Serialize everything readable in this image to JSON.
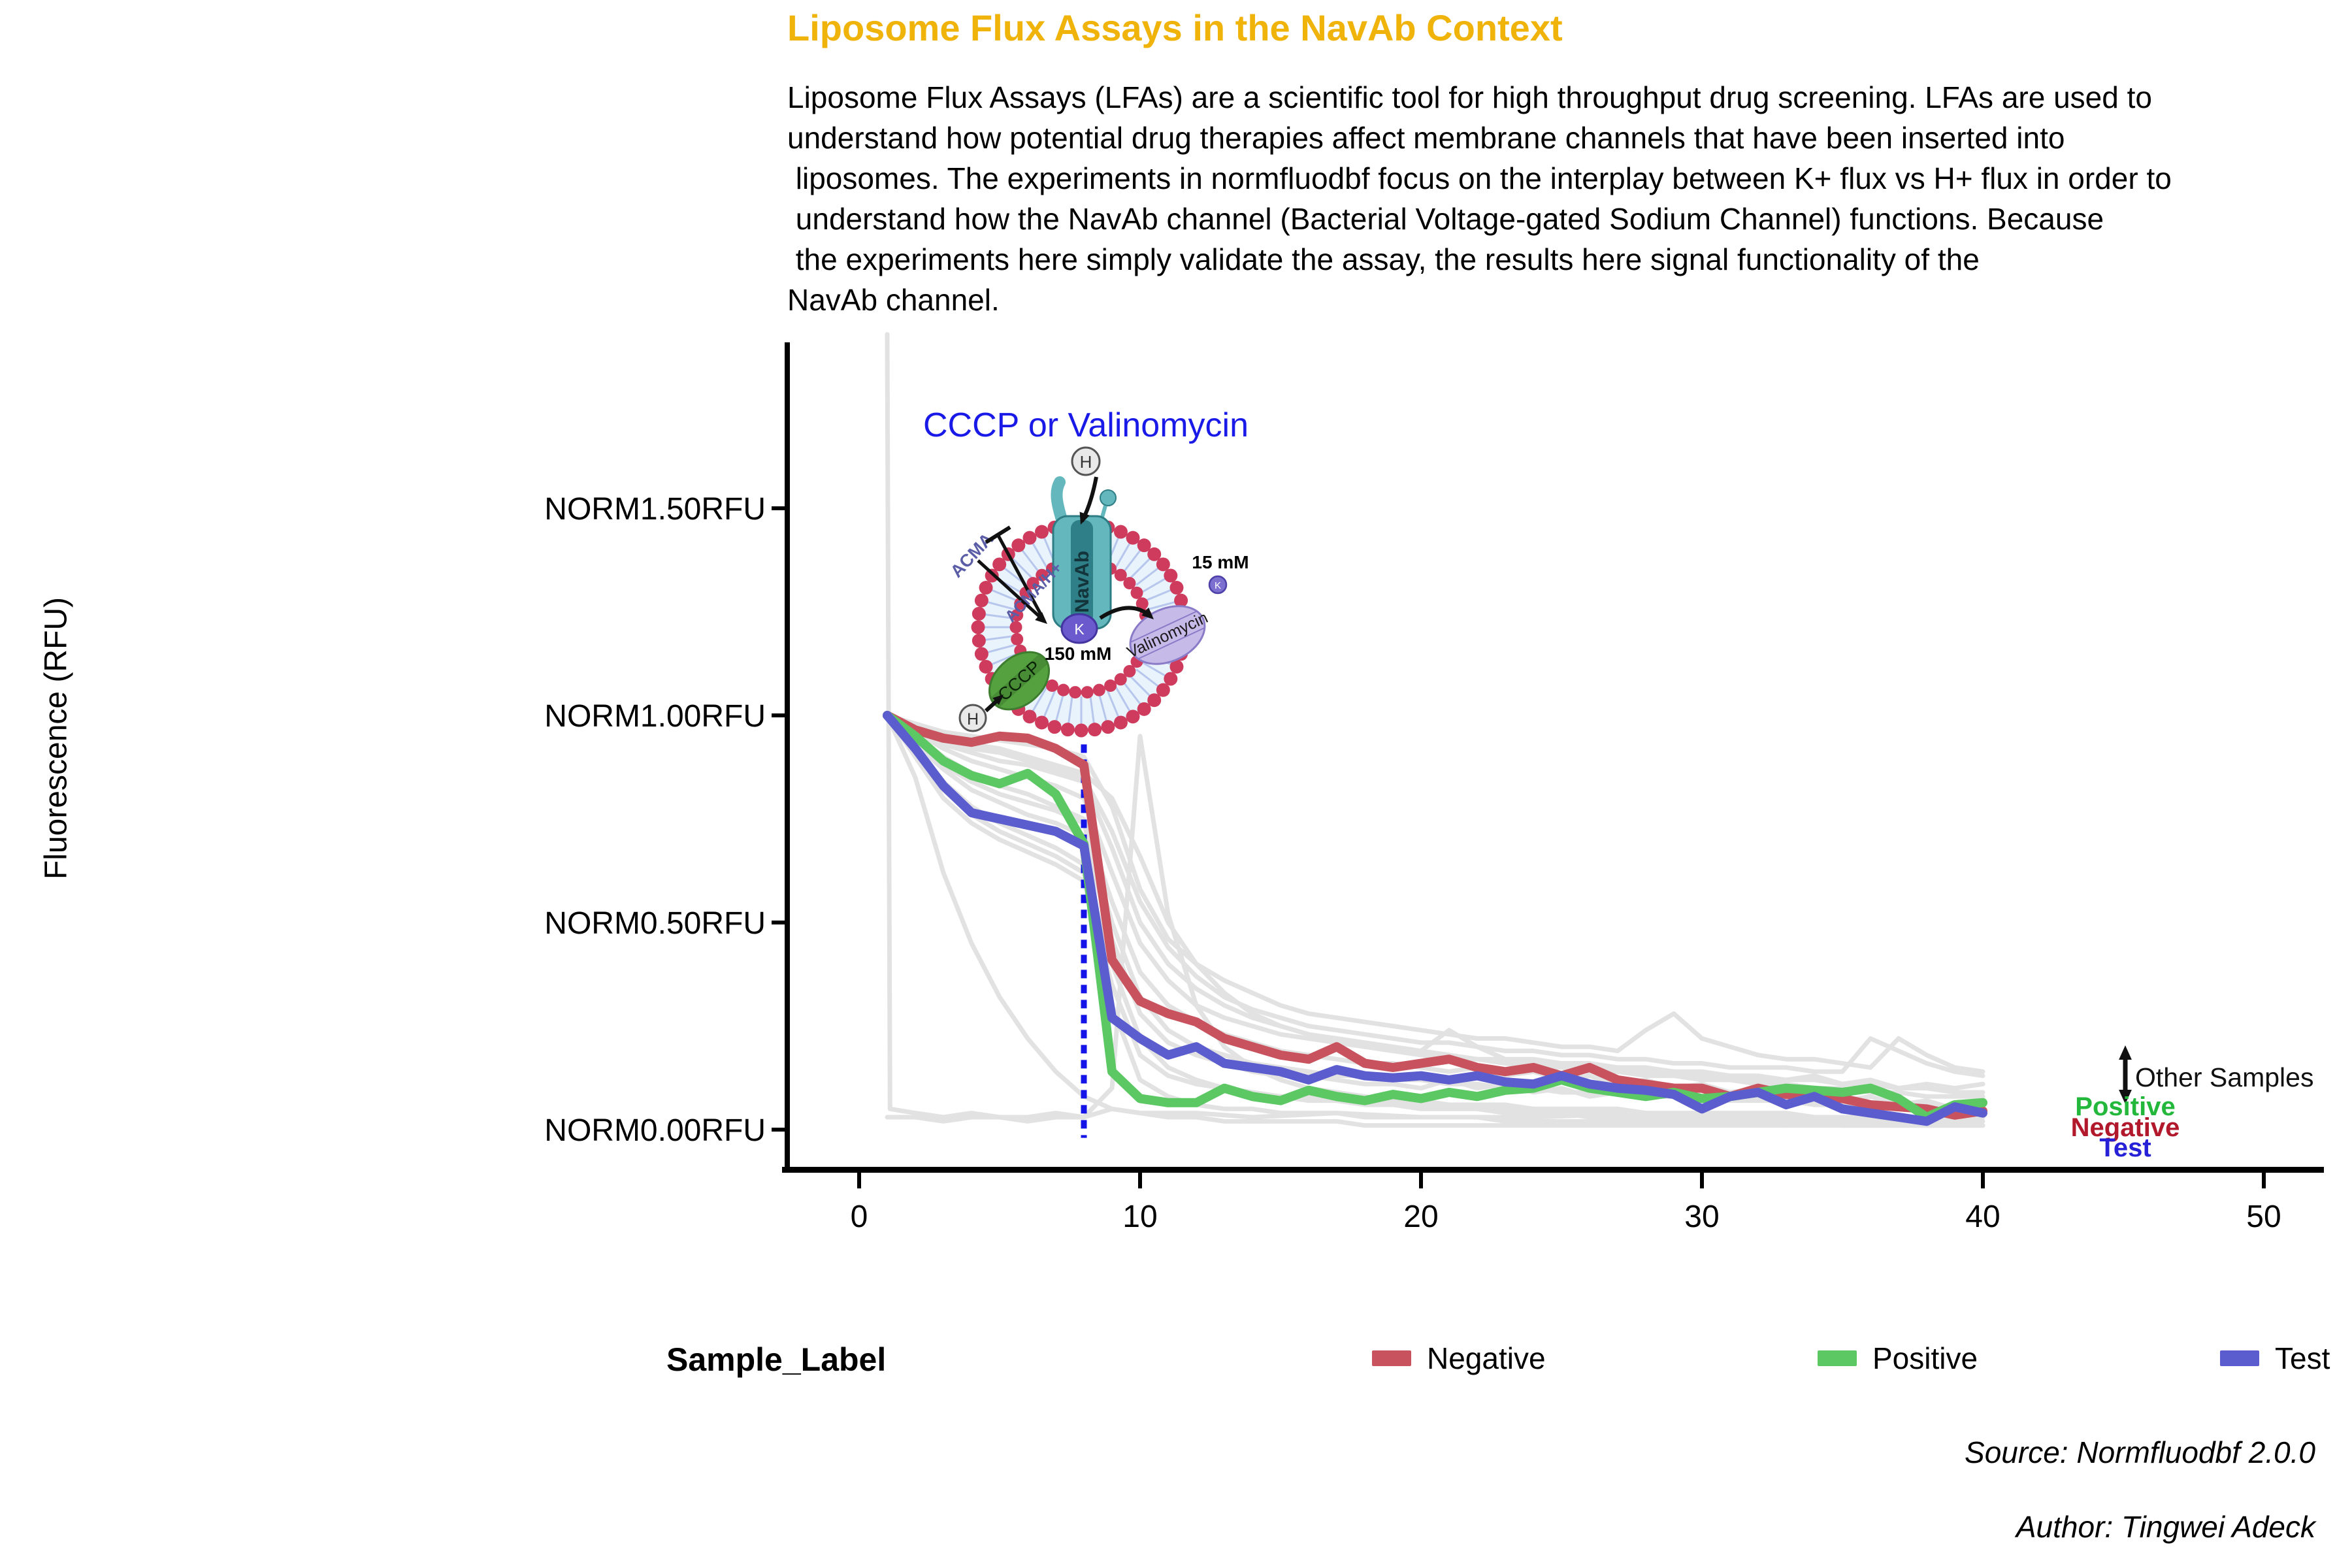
{
  "title": {
    "text": "Liposome Flux Assays in the NavAb Context",
    "color": "#efb30a"
  },
  "description": {
    "lines": [
      "Liposome Flux Assays (LFAs) are a scientific tool for high throughput drug screening. LFAs are used to",
      "understand how potential drug therapies affect membrane channels that have been inserted into",
      " liposomes. The experiments in normfluodbf focus on the interplay between K+ flux vs H+ flux in order to",
      " understand how the NavAb channel (Bacterial Voltage-gated Sodium Channel) functions. Because",
      " the experiments here simply validate the assay, the results here signal functionality of the",
      "NavAb channel."
    ]
  },
  "y_axis": {
    "label": "Fluorescence (RFU)"
  },
  "diagram": {
    "heading": "CCCP or Valinomycin",
    "heading_color": "#1a1ae8",
    "navab_label": "NavAb",
    "acma_label": "ACMA",
    "acma_h_label": "ACMA/H+",
    "cccp_label": "CCCP",
    "valinomycin_label": "Valinomycin",
    "k_ion": "K",
    "h_ion": "H",
    "inner_concentration": "150 mM",
    "outer_concentration": "15 mM"
  },
  "annotations": {
    "other_samples": {
      "label": "Other Samples",
      "color": "#111111"
    },
    "positive": {
      "label": "Positive",
      "color": "#23b83c"
    },
    "negative": {
      "label": "Negative",
      "color": "#b2182b"
    },
    "test": {
      "label": "Test",
      "color": "#2620d6"
    }
  },
  "legend": {
    "title": "Sample_Label",
    "items": [
      {
        "label": "Negative",
        "color": "#c8535e"
      },
      {
        "label": "Positive",
        "color": "#5bc863"
      },
      {
        "label": "Test",
        "color": "#5b5cce"
      }
    ]
  },
  "credits": {
    "source": "Source: Normfluodbf 2.0.0",
    "author": "Author: Tingwei Adeck"
  },
  "chart_data": {
    "type": "line",
    "title": "Liposome Flux Assays in the NavAb Context",
    "xlabel": "",
    "ylabel": "Fluorescence (RFU)",
    "xlim": [
      -1.5,
      52
    ],
    "ylim": [
      -0.1,
      1.95
    ],
    "grid": false,
    "legend_position": "bottom",
    "x_ticks": [
      0,
      10,
      20,
      30,
      40,
      50
    ],
    "y_ticks": [
      {
        "value": 0.0,
        "label": "NORM0.00RFU"
      },
      {
        "value": 0.5,
        "label": "NORM0.50RFU"
      },
      {
        "value": 1.0,
        "label": "NORM1.00RFU"
      },
      {
        "value": 1.5,
        "label": "NORM1.50RFU"
      }
    ],
    "vline": {
      "x": 8,
      "color": "#1414e8",
      "style": "dotted",
      "y_from": -0.02,
      "y_to": 0.93
    },
    "x": [
      1,
      2,
      3,
      4,
      5,
      6,
      7,
      8,
      9,
      10,
      11,
      12,
      13,
      14,
      15,
      16,
      17,
      18,
      19,
      20,
      21,
      22,
      23,
      24,
      25,
      26,
      27,
      28,
      29,
      30,
      31,
      32,
      33,
      34,
      35,
      36,
      37,
      38,
      39,
      40
    ],
    "series": [
      {
        "name": "Negative",
        "color": "#c8535e",
        "values": [
          1.0,
          0.965,
          0.945,
          0.935,
          0.95,
          0.945,
          0.92,
          0.88,
          0.41,
          0.31,
          0.28,
          0.26,
          0.22,
          0.2,
          0.18,
          0.17,
          0.2,
          0.16,
          0.15,
          0.16,
          0.17,
          0.15,
          0.14,
          0.15,
          0.13,
          0.15,
          0.12,
          0.11,
          0.1,
          0.1,
          0.08,
          0.1,
          0.085,
          0.08,
          0.075,
          0.06,
          0.055,
          0.05,
          0.035,
          0.045
        ]
      },
      {
        "name": "Positive",
        "color": "#5bc863",
        "values": [
          1.0,
          0.95,
          0.89,
          0.855,
          0.835,
          0.86,
          0.81,
          0.69,
          0.14,
          0.075,
          0.065,
          0.065,
          0.1,
          0.08,
          0.07,
          0.095,
          0.08,
          0.07,
          0.085,
          0.075,
          0.09,
          0.08,
          0.095,
          0.1,
          0.12,
          0.1,
          0.09,
          0.08,
          0.09,
          0.075,
          0.08,
          0.09,
          0.1,
          0.095,
          0.09,
          0.1,
          0.075,
          0.03,
          0.06,
          0.065
        ]
      },
      {
        "name": "Test",
        "color": "#5b5cce",
        "values": [
          1.0,
          0.92,
          0.83,
          0.765,
          0.75,
          0.735,
          0.72,
          0.685,
          0.27,
          0.22,
          0.18,
          0.2,
          0.16,
          0.15,
          0.14,
          0.12,
          0.145,
          0.13,
          0.125,
          0.13,
          0.12,
          0.13,
          0.115,
          0.11,
          0.13,
          0.11,
          0.1,
          0.095,
          0.085,
          0.05,
          0.08,
          0.09,
          0.06,
          0.08,
          0.05,
          0.04,
          0.03,
          0.02,
          0.055,
          0.04
        ]
      }
    ],
    "other_samples_color": "#e2e2e2",
    "other_samples": [
      {
        "values": [
          1,
          0.98,
          0.96,
          0.95,
          0.94,
          0.93,
          0.92,
          0.9,
          0.78,
          0.58,
          0.46,
          0.4,
          0.36,
          0.33,
          0.3,
          0.28,
          0.27,
          0.26,
          0.25,
          0.24,
          0.23,
          0.22,
          0.22,
          0.21,
          0.2,
          0.2,
          0.19,
          0.24,
          0.28,
          0.22,
          0.2,
          0.18,
          0.17,
          0.17,
          0.16,
          0.15,
          0.22,
          0.18,
          0.15,
          0.14
        ]
      },
      {
        "values": [
          1,
          0.96,
          0.92,
          0.89,
          0.87,
          0.85,
          0.83,
          0.8,
          0.62,
          0.45,
          0.36,
          0.3,
          0.27,
          0.25,
          0.23,
          0.22,
          0.21,
          0.2,
          0.19,
          0.19,
          0.18,
          0.17,
          0.17,
          0.16,
          0.16,
          0.15,
          0.15,
          0.14,
          0.14,
          0.13,
          0.13,
          0.12,
          0.12,
          0.13,
          0.11,
          0.12,
          0.1,
          0.11,
          0.1,
          0.11
        ]
      },
      {
        "values": [
          1,
          0.97,
          0.95,
          0.93,
          0.92,
          0.9,
          0.88,
          0.86,
          0.8,
          0.66,
          0.5,
          0.4,
          0.33,
          0.28,
          0.25,
          0.23,
          0.21,
          0.2,
          0.19,
          0.18,
          0.17,
          0.17,
          0.16,
          0.15,
          0.15,
          0.14,
          0.14,
          0.13,
          0.13,
          0.12,
          0.12,
          0.11,
          0.11,
          0.1,
          0.1,
          0.09,
          0.09,
          0.08,
          0.08,
          0.08
        ]
      },
      {
        "values": [
          1,
          0.94,
          0.88,
          0.84,
          0.81,
          0.79,
          0.77,
          0.74,
          0.5,
          0.32,
          0.24,
          0.2,
          0.18,
          0.16,
          0.15,
          0.14,
          0.13,
          0.13,
          0.12,
          0.12,
          0.11,
          0.11,
          0.1,
          0.1,
          0.09,
          0.09,
          0.09,
          0.08,
          0.08,
          0.08,
          0.07,
          0.07,
          0.07,
          0.06,
          0.06,
          0.06,
          0.05,
          0.05,
          0.05,
          0.05
        ]
      },
      {
        "values": [
          1,
          0.9,
          0.8,
          0.74,
          0.7,
          0.67,
          0.64,
          0.6,
          0.35,
          0.18,
          0.13,
          0.11,
          0.1,
          0.09,
          0.08,
          0.08,
          0.07,
          0.07,
          0.06,
          0.06,
          0.06,
          0.05,
          0.05,
          0.05,
          0.04,
          0.04,
          0.04,
          0.04,
          0.03,
          0.03,
          0.03,
          0.03,
          0.02,
          0.02,
          0.02,
          0.02,
          0.02,
          0.02,
          0.02,
          0.02
        ]
      },
      {
        "values": [
          1,
          0.85,
          0.62,
          0.45,
          0.32,
          0.22,
          0.14,
          0.08,
          0.05,
          0.04,
          0.03,
          0.03,
          0.02,
          0.02,
          0.02,
          0.02,
          0.02,
          0.01,
          0.01,
          0.01,
          0.01,
          0.01,
          0.01,
          0.01,
          0.01,
          0.01,
          0.01,
          0.01,
          0.01,
          0.01,
          0.01,
          0.01,
          0.01,
          0.01,
          0.01,
          0.01,
          0.01,
          0.01,
          0.01,
          0.01
        ]
      },
      {
        "values": [
          1,
          0.95,
          0.9,
          0.86,
          0.83,
          0.81,
          0.78,
          0.75,
          0.55,
          0.38,
          0.3,
          0.26,
          0.23,
          0.21,
          0.19,
          0.18,
          0.17,
          0.16,
          0.16,
          0.15,
          0.14,
          0.15,
          0.13,
          0.14,
          0.12,
          0.13,
          0.11,
          0.12,
          0.1,
          0.11,
          0.09,
          0.1,
          0.08,
          0.09,
          0.07,
          0.08,
          0.06,
          0.07,
          0.05,
          0.06
        ]
      },
      {
        "values": [
          1,
          0.92,
          0.84,
          0.78,
          0.74,
          0.71,
          0.68,
          0.64,
          0.4,
          0.22,
          0.15,
          0.12,
          0.1,
          0.09,
          0.08,
          0.07,
          0.07,
          0.06,
          0.06,
          0.05,
          0.05,
          0.05,
          0.04,
          0.04,
          0.04,
          0.03,
          0.03,
          0.03,
          0.03,
          0.02,
          0.02,
          0.02,
          0.02,
          0.02,
          0.01,
          0.01,
          0.01,
          0.01,
          0.01,
          0.01
        ]
      },
      {
        "values": [
          1,
          0.96,
          0.93,
          0.91,
          0.89,
          0.88,
          0.86,
          0.84,
          0.68,
          0.5,
          0.4,
          0.34,
          0.3,
          0.27,
          0.25,
          0.23,
          0.22,
          0.21,
          0.2,
          0.19,
          0.24,
          0.2,
          0.17,
          0.17,
          0.16,
          0.16,
          0.15,
          0.15,
          0.14,
          0.14,
          0.13,
          0.13,
          0.12,
          0.12,
          0.11,
          0.11,
          0.1,
          0.1,
          0.09,
          0.09
        ]
      },
      {
        "values": [
          0.03,
          0.03,
          0.02,
          0.03,
          0.03,
          0.02,
          0.03,
          0.03,
          0.1,
          0.95,
          0.52,
          0.3,
          0.2,
          0.15,
          0.12,
          0.1,
          0.09,
          0.08,
          0.07,
          0.07,
          0.06,
          0.06,
          0.06,
          0.05,
          0.05,
          0.05,
          0.05,
          0.04,
          0.04,
          0.04,
          0.04,
          0.04,
          0.04,
          0.03,
          0.03,
          0.03,
          0.03,
          0.03,
          0.03,
          0.03
        ]
      },
      {
        "x": [
          1,
          1.1,
          2,
          3,
          4,
          5,
          6,
          7,
          8,
          9,
          10,
          12,
          14,
          17,
          20,
          24,
          28,
          32,
          36,
          40
        ],
        "values": [
          1.92,
          0.05,
          0.04,
          0.03,
          0.04,
          0.03,
          0.03,
          0.04,
          0.03,
          0.05,
          0.04,
          0.04,
          0.03,
          0.04,
          0.03,
          0.03,
          0.04,
          0.03,
          0.03,
          0.03
        ]
      },
      {
        "values": [
          1,
          0.93,
          0.87,
          0.82,
          0.79,
          0.76,
          0.74,
          0.71,
          0.46,
          0.28,
          0.21,
          0.18,
          0.16,
          0.14,
          0.13,
          0.13,
          0.12,
          0.11,
          0.11,
          0.1,
          0.12,
          0.1,
          0.11,
          0.09,
          0.1,
          0.08,
          0.09,
          0.08,
          0.08,
          0.07,
          0.07,
          0.08,
          0.06,
          0.07,
          0.06,
          0.06,
          0.05,
          0.06,
          0.05,
          0.05
        ]
      },
      {
        "values": [
          1,
          0.97,
          0.94,
          0.92,
          0.91,
          0.89,
          0.87,
          0.85,
          0.72,
          0.55,
          0.44,
          0.37,
          0.32,
          0.29,
          0.27,
          0.25,
          0.24,
          0.23,
          0.22,
          0.21,
          0.21,
          0.2,
          0.19,
          0.19,
          0.18,
          0.18,
          0.17,
          0.17,
          0.16,
          0.16,
          0.15,
          0.15,
          0.15,
          0.14,
          0.14,
          0.22,
          0.19,
          0.16,
          0.14,
          0.13
        ]
      },
      {
        "values": [
          1,
          0.91,
          0.82,
          0.76,
          0.72,
          0.69,
          0.66,
          0.62,
          0.3,
          0.12,
          0.08,
          0.06,
          0.05,
          0.05,
          0.04,
          0.04,
          0.04,
          0.03,
          0.03,
          0.03,
          0.03,
          0.03,
          0.02,
          0.02,
          0.02,
          0.02,
          0.02,
          0.02,
          0.02,
          0.02,
          0.01,
          0.02,
          0.01,
          0.02,
          0.01,
          0.01,
          0.02,
          0.01,
          0.01,
          0.01
        ]
      }
    ]
  }
}
